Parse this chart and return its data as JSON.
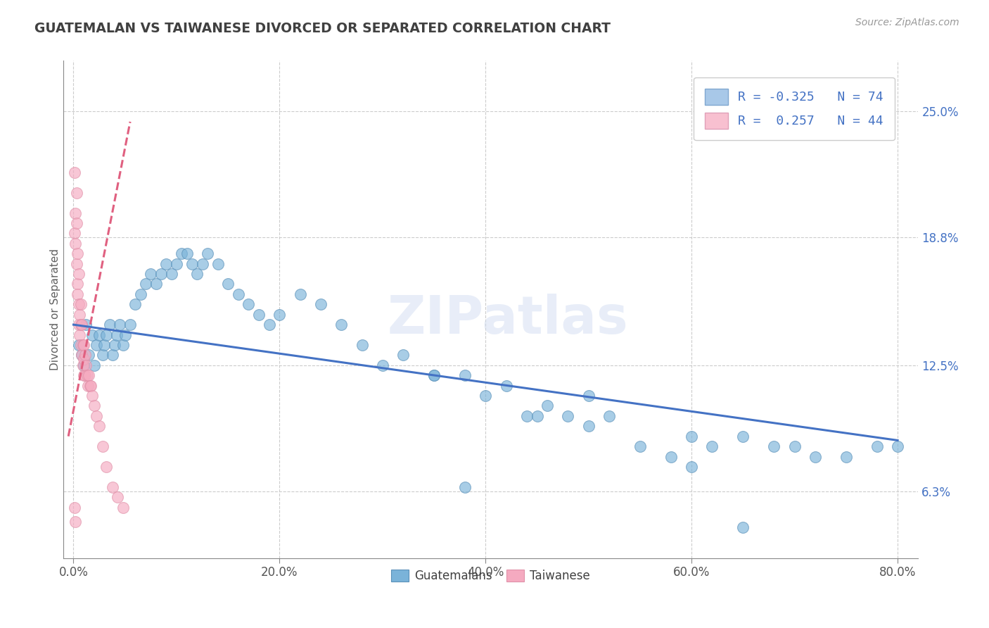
{
  "title": "GUATEMALAN VS TAIWANESE DIVORCED OR SEPARATED CORRELATION CHART",
  "source_text": "Source: ZipAtlas.com",
  "ylabel": "Divorced or Separated",
  "watermark": "ZIPatlas",
  "x_ticks": [
    "0.0%",
    "20.0%",
    "40.0%",
    "60.0%",
    "80.0%"
  ],
  "x_tick_vals": [
    0.0,
    0.2,
    0.4,
    0.6,
    0.8
  ],
  "y_ticks": [
    "6.3%",
    "12.5%",
    "18.8%",
    "25.0%"
  ],
  "y_tick_vals": [
    0.063,
    0.125,
    0.188,
    0.25
  ],
  "xlim": [
    -0.01,
    0.82
  ],
  "ylim": [
    0.03,
    0.275
  ],
  "legend_r1": "R = -0.325   N = 74",
  "legend_r2": "R =  0.257   N = 44",
  "blue_scatter_x": [
    0.005,
    0.008,
    0.01,
    0.012,
    0.015,
    0.018,
    0.02,
    0.022,
    0.025,
    0.028,
    0.03,
    0.032,
    0.035,
    0.038,
    0.04,
    0.042,
    0.045,
    0.048,
    0.05,
    0.055,
    0.06,
    0.065,
    0.07,
    0.075,
    0.08,
    0.085,
    0.09,
    0.095,
    0.1,
    0.105,
    0.11,
    0.115,
    0.12,
    0.125,
    0.13,
    0.14,
    0.15,
    0.16,
    0.17,
    0.18,
    0.19,
    0.2,
    0.22,
    0.24,
    0.26,
    0.28,
    0.3,
    0.32,
    0.35,
    0.38,
    0.4,
    0.42,
    0.44,
    0.46,
    0.48,
    0.5,
    0.52,
    0.55,
    0.58,
    0.6,
    0.62,
    0.65,
    0.68,
    0.7,
    0.72,
    0.75,
    0.78,
    0.8,
    0.5,
    0.35,
    0.45,
    0.6,
    0.38,
    0.65
  ],
  "blue_scatter_y": [
    0.135,
    0.13,
    0.125,
    0.145,
    0.13,
    0.14,
    0.125,
    0.135,
    0.14,
    0.13,
    0.135,
    0.14,
    0.145,
    0.13,
    0.135,
    0.14,
    0.145,
    0.135,
    0.14,
    0.145,
    0.155,
    0.16,
    0.165,
    0.17,
    0.165,
    0.17,
    0.175,
    0.17,
    0.175,
    0.18,
    0.18,
    0.175,
    0.17,
    0.175,
    0.18,
    0.175,
    0.165,
    0.16,
    0.155,
    0.15,
    0.145,
    0.15,
    0.16,
    0.155,
    0.145,
    0.135,
    0.125,
    0.13,
    0.12,
    0.12,
    0.11,
    0.115,
    0.1,
    0.105,
    0.1,
    0.095,
    0.1,
    0.085,
    0.08,
    0.09,
    0.085,
    0.09,
    0.085,
    0.085,
    0.08,
    0.08,
    0.085,
    0.085,
    0.11,
    0.12,
    0.1,
    0.075,
    0.065,
    0.045
  ],
  "pink_scatter_x": [
    0.001,
    0.001,
    0.002,
    0.002,
    0.003,
    0.003,
    0.003,
    0.004,
    0.004,
    0.004,
    0.005,
    0.005,
    0.005,
    0.006,
    0.006,
    0.007,
    0.007,
    0.007,
    0.008,
    0.008,
    0.009,
    0.009,
    0.01,
    0.01,
    0.01,
    0.011,
    0.011,
    0.012,
    0.013,
    0.014,
    0.015,
    0.016,
    0.017,
    0.018,
    0.02,
    0.022,
    0.025,
    0.028,
    0.032,
    0.038,
    0.043,
    0.048,
    0.001,
    0.002
  ],
  "pink_scatter_y": [
    0.19,
    0.22,
    0.2,
    0.185,
    0.21,
    0.195,
    0.175,
    0.18,
    0.165,
    0.16,
    0.17,
    0.155,
    0.145,
    0.15,
    0.14,
    0.155,
    0.145,
    0.135,
    0.145,
    0.13,
    0.135,
    0.125,
    0.135,
    0.128,
    0.12,
    0.13,
    0.12,
    0.125,
    0.12,
    0.115,
    0.12,
    0.115,
    0.115,
    0.11,
    0.105,
    0.1,
    0.095,
    0.085,
    0.075,
    0.065,
    0.06,
    0.055,
    0.055,
    0.048
  ],
  "blue_line_x": [
    0.0,
    0.8
  ],
  "blue_line_y": [
    0.145,
    0.088
  ],
  "pink_line_x": [
    -0.005,
    0.055
  ],
  "pink_line_y": [
    0.09,
    0.245
  ],
  "grid_color": "#cccccc",
  "blue_dot_color": "#7ab3d9",
  "blue_dot_edge": "#5a90b8",
  "pink_dot_color": "#f5aac0",
  "pink_dot_edge": "#e090a8",
  "blue_line_color": "#4472c4",
  "pink_line_color": "#e06080",
  "title_color": "#404040",
  "axis_color": "#888888",
  "tick_color_x": "#555555",
  "tick_color_y": "#4472c4",
  "background_color": "#ffffff"
}
